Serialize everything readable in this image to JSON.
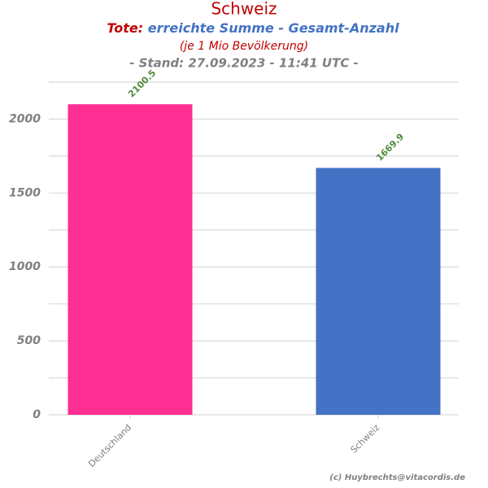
{
  "chart_data": {
    "type": "bar",
    "title": "Schweiz",
    "subtitle": [
      "Tote:",
      "erreichte Summe - Gesamt-Anzahl"
    ],
    "note": "(je 1 Mio Bevölkerung)",
    "date_line": "- Stand: 27.09.2023 - 11:41 UTC -",
    "credit": "(c) Huybrechts@vitacordis.de",
    "categories": [
      "Deutschland",
      "Schweiz"
    ],
    "values": [
      2100.5,
      1669.9
    ],
    "colors": [
      "#ff2e92",
      "#4472c4"
    ],
    "ylim": [
      0,
      2250
    ],
    "yticks": [
      0,
      500,
      1000,
      1500,
      2000
    ],
    "minor_yticks": [
      250,
      750,
      1250,
      1750,
      2250
    ],
    "grid": true
  }
}
